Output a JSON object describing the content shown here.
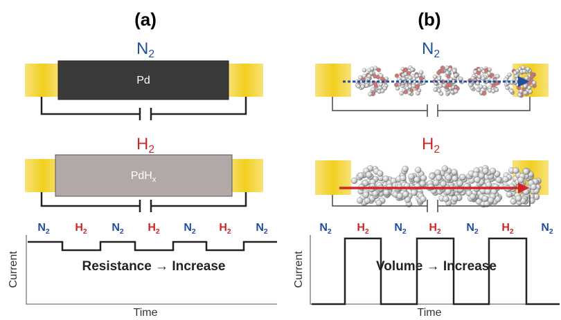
{
  "panel_a": {
    "label": "(a)",
    "top_gas": {
      "base": "N",
      "sub": "2",
      "color": "#1f4fa0"
    },
    "top_film": "Pd",
    "bottom_gas": {
      "base": "H",
      "sub": "2",
      "color": "#d0262a"
    },
    "bottom_film": {
      "base": "PdH",
      "sub": "x"
    },
    "plot": {
      "gas_sequence": [
        {
          "base": "N",
          "sub": "2",
          "color": "#1f4fa0"
        },
        {
          "base": "H",
          "sub": "2",
          "color": "#d0262a"
        },
        {
          "base": "N",
          "sub": "2",
          "color": "#1f4fa0"
        },
        {
          "base": "H",
          "sub": "2",
          "color": "#d0262a"
        },
        {
          "base": "N",
          "sub": "2",
          "color": "#1f4fa0"
        },
        {
          "base": "H",
          "sub": "2",
          "color": "#d0262a"
        },
        {
          "base": "N",
          "sub": "2",
          "color": "#1f4fa0"
        }
      ],
      "annotation": "Resistance → Increase",
      "y_label": "Current",
      "x_label": "Time"
    }
  },
  "panel_b": {
    "label": "(b)",
    "top_gas": {
      "base": "N",
      "sub": "2",
      "color": "#1f4fa0"
    },
    "bottom_gas": {
      "base": "H",
      "sub": "2",
      "color": "#d0262a"
    },
    "plot": {
      "gas_sequence": [
        {
          "base": "N",
          "sub": "2",
          "color": "#1f4fa0"
        },
        {
          "base": "H",
          "sub": "2",
          "color": "#d0262a"
        },
        {
          "base": "N",
          "sub": "2",
          "color": "#1f4fa0"
        },
        {
          "base": "H",
          "sub": "2",
          "color": "#d0262a"
        },
        {
          "base": "N",
          "sub": "2",
          "color": "#1f4fa0"
        },
        {
          "base": "H",
          "sub": "2",
          "color": "#d0262a"
        },
        {
          "base": "N",
          "sub": "2",
          "color": "#1f4fa0"
        }
      ],
      "annotation": "Volume → Increase",
      "y_label": "Current",
      "x_label": "Time"
    }
  }
}
